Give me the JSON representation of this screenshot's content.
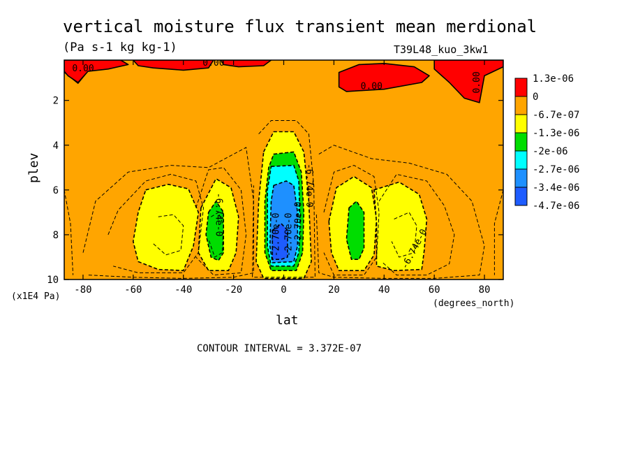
{
  "chart_data": {
    "type": "heatmap",
    "title": "vertical moisture flux transient mean merdional",
    "units": "(Pa s-1 kg kg-1)",
    "run_label": "T39L48_kuo_3kw1",
    "xlabel": "lat",
    "x_units": "(degrees_north)",
    "ylabel": "plev",
    "y_units": "(x1E4 Pa)",
    "xlim": [
      -87.5,
      87.5
    ],
    "ylim": [
      0.2,
      10
    ],
    "y_reversed": true,
    "x_ticks": [
      "-80",
      "-60",
      "-40",
      "-20",
      "0",
      "20",
      "40",
      "60",
      "80"
    ],
    "x_tick_values": [
      -80,
      -60,
      -40,
      -20,
      0,
      20,
      40,
      60,
      80
    ],
    "y_ticks": [
      "2",
      "4",
      "6",
      "8",
      "10"
    ],
    "y_tick_values": [
      2,
      4,
      6,
      8,
      10
    ],
    "footer": "CONTOUR INTERVAL = 3.372E-07",
    "legend": {
      "placement": "right",
      "colors": [
        "#ff0000",
        "#ffa500",
        "#ffff00",
        "#00dd00",
        "#00ffff",
        "#1e90ff",
        "#1e5cff"
      ],
      "labels": [
        "1.3e-06",
        "0",
        "-6.7e-07",
        "-1.3e-06",
        "-2e-06",
        "-2.7e-06",
        "-3.4e-06",
        "-4.7e-06"
      ]
    },
    "background_color": "#ffa500",
    "regions": [
      {
        "name": "upper-red-west",
        "color": "#ff0000",
        "points": [
          [
            -87.5,
            0.2
          ],
          [
            -65,
            0.2
          ],
          [
            -62,
            0.4
          ],
          [
            -70,
            0.6
          ],
          [
            -78,
            0.7
          ],
          [
            -82,
            1.2
          ],
          [
            -86,
            0.9
          ],
          [
            -87.5,
            0.7
          ]
        ]
      },
      {
        "name": "upper-red-center",
        "color": "#ff0000",
        "points": [
          [
            -60,
            0.2
          ],
          [
            -28,
            0.2
          ],
          [
            -30,
            0.55
          ],
          [
            -40,
            0.65
          ],
          [
            -52,
            0.55
          ],
          [
            -58,
            0.45
          ]
        ]
      },
      {
        "name": "upper-red-center2",
        "color": "#ff0000",
        "points": [
          [
            -25,
            0.2
          ],
          [
            -5,
            0.2
          ],
          [
            -8,
            0.45
          ],
          [
            -18,
            0.5
          ],
          [
            -24,
            0.4
          ]
        ]
      },
      {
        "name": "upper-red-east",
        "color": "#ff0000",
        "points": [
          [
            22,
            0.75
          ],
          [
            30,
            0.4
          ],
          [
            40,
            0.35
          ],
          [
            52,
            0.5
          ],
          [
            58,
            0.9
          ],
          [
            55,
            1.2
          ],
          [
            40,
            1.5
          ],
          [
            25,
            1.6
          ],
          [
            22,
            1.4
          ]
        ]
      },
      {
        "name": "upper-red-far-east",
        "color": "#ff0000",
        "points": [
          [
            60,
            0.2
          ],
          [
            87.5,
            0.2
          ],
          [
            87.5,
            0.5
          ],
          [
            80,
            0.9
          ],
          [
            78,
            2.1
          ],
          [
            72,
            1.9
          ],
          [
            66,
            1.2
          ],
          [
            60,
            0.6
          ]
        ]
      },
      {
        "name": "yellow-west",
        "color": "#ffff00",
        "points": [
          [
            -55,
            6.0
          ],
          [
            -46,
            5.75
          ],
          [
            -38,
            5.95
          ],
          [
            -34,
            7.0
          ],
          [
            -36,
            8.5
          ],
          [
            -40,
            9.6
          ],
          [
            -50,
            9.55
          ],
          [
            -58,
            9.2
          ],
          [
            -60,
            8.3
          ],
          [
            -58,
            7.0
          ]
        ]
      },
      {
        "name": "yellow-sw-blob",
        "color": "#ffff00",
        "points": [
          [
            -33,
            6.8
          ],
          [
            -27,
            5.5
          ],
          [
            -21,
            5.9
          ],
          [
            -18,
            7.2
          ],
          [
            -19,
            8.8
          ],
          [
            -22,
            9.6
          ],
          [
            -30,
            9.6
          ],
          [
            -34,
            8.8
          ]
        ]
      },
      {
        "name": "yellow-center",
        "color": "#ffff00",
        "points": [
          [
            -8,
            4.3
          ],
          [
            -4,
            3.4
          ],
          [
            4,
            3.4
          ],
          [
            8,
            4.3
          ],
          [
            10,
            6.5
          ],
          [
            11,
            9.2
          ],
          [
            8,
            9.95
          ],
          [
            -8,
            9.95
          ],
          [
            -11,
            9.2
          ],
          [
            -10,
            6.5
          ]
        ]
      },
      {
        "name": "yellow-east-blob",
        "color": "#ffff00",
        "points": [
          [
            18,
            7.4
          ],
          [
            21,
            5.9
          ],
          [
            28,
            5.4
          ],
          [
            35,
            5.9
          ],
          [
            37,
            7.3
          ],
          [
            36,
            8.9
          ],
          [
            32,
            9.6
          ],
          [
            22,
            9.6
          ],
          [
            19,
            8.8
          ]
        ]
      },
      {
        "name": "yellow-east",
        "color": "#ffff00",
        "points": [
          [
            36,
            6.0
          ],
          [
            46,
            5.65
          ],
          [
            54,
            6.2
          ],
          [
            57,
            7.3
          ],
          [
            56,
            8.7
          ],
          [
            55,
            9.55
          ],
          [
            44,
            9.6
          ],
          [
            37,
            9.4
          ],
          [
            37,
            7.5
          ]
        ]
      },
      {
        "name": "green-west",
        "color": "#00dd00",
        "points": [
          [
            -30,
            7.0
          ],
          [
            -27,
            6.5
          ],
          [
            -24,
            7.0
          ],
          [
            -24,
            8.8
          ],
          [
            -26,
            9.15
          ],
          [
            -29,
            9.0
          ],
          [
            -31,
            8.0
          ]
        ]
      },
      {
        "name": "green-east",
        "color": "#00dd00",
        "points": [
          [
            26,
            6.8
          ],
          [
            29,
            6.5
          ],
          [
            32,
            7.0
          ],
          [
            32,
            8.6
          ],
          [
            30,
            9.1
          ],
          [
            27,
            9.1
          ],
          [
            25,
            8.2
          ]
        ]
      },
      {
        "name": "green-center",
        "color": "#00dd00",
        "points": [
          [
            -4,
            4.4
          ],
          [
            4,
            4.3
          ],
          [
            7,
            5.2
          ],
          [
            8,
            7.0
          ],
          [
            7.5,
            8.8
          ],
          [
            5,
            9.6
          ],
          [
            -5,
            9.6
          ],
          [
            -7.5,
            8.8
          ],
          [
            -7.5,
            6.5
          ],
          [
            -6,
            5.0
          ]
        ]
      },
      {
        "name": "cyan-center",
        "color": "#00ffff",
        "points": [
          [
            -5,
            4.95
          ],
          [
            4,
            4.9
          ],
          [
            6,
            5.6
          ],
          [
            6.5,
            7.5
          ],
          [
            6,
            8.8
          ],
          [
            4,
            9.4
          ],
          [
            -5,
            9.4
          ],
          [
            -6.5,
            8.5
          ],
          [
            -6.5,
            6.0
          ]
        ]
      },
      {
        "name": "blue-center",
        "color": "#1e90ff",
        "points": [
          [
            -4,
            5.8
          ],
          [
            1,
            5.6
          ],
          [
            4,
            5.8
          ],
          [
            5.5,
            7.0
          ],
          [
            5.5,
            8.5
          ],
          [
            4,
            9.2
          ],
          [
            -4.5,
            9.25
          ],
          [
            -5.5,
            8.5
          ],
          [
            -5,
            6.5
          ]
        ]
      },
      {
        "name": "deepblue-center",
        "color": "#1e5cff",
        "points": [
          [
            -4.5,
            7.8
          ],
          [
            -1,
            7.5
          ],
          [
            1.5,
            7.8
          ],
          [
            1.5,
            9.0
          ],
          [
            -1,
            9.1
          ],
          [
            -4.5,
            9.1
          ]
        ]
      }
    ],
    "contours": [
      {
        "style": "dashed",
        "points": [
          [
            -80,
            8.8
          ],
          [
            -75,
            6.5
          ],
          [
            -62,
            5.2
          ],
          [
            -45,
            4.9
          ],
          [
            -30,
            5.0
          ],
          [
            -20,
            4.4
          ],
          [
            -15,
            4.1
          ],
          [
            -12,
            6.5
          ],
          [
            -12,
            9.7
          ],
          [
            -20,
            9.9
          ],
          [
            -40,
            9.95
          ],
          [
            -60,
            9.9
          ],
          [
            -78,
            9.8
          ]
        ]
      },
      {
        "style": "dashed",
        "points": [
          [
            -10,
            3.5
          ],
          [
            -5,
            2.9
          ],
          [
            5,
            2.9
          ],
          [
            10,
            3.5
          ],
          [
            12,
            5.8
          ],
          [
            12.5,
            9.9
          ],
          [
            -12.5,
            9.9
          ],
          [
            -12,
            5.8
          ]
        ]
      },
      {
        "style": "dashed",
        "points": [
          [
            14,
            4.4
          ],
          [
            20,
            4.0
          ],
          [
            35,
            4.6
          ],
          [
            50,
            4.8
          ],
          [
            65,
            5.3
          ],
          [
            75,
            6.5
          ],
          [
            80,
            8.5
          ],
          [
            78,
            9.8
          ],
          [
            60,
            9.95
          ],
          [
            40,
            9.95
          ],
          [
            20,
            9.9
          ],
          [
            14,
            9.7
          ],
          [
            13,
            7.0
          ]
        ]
      },
      {
        "style": "dashed",
        "points": [
          [
            -70,
            8.0
          ],
          [
            -66,
            6.9
          ],
          [
            -55,
            5.6
          ],
          [
            -45,
            5.3
          ],
          [
            -35,
            5.6
          ],
          [
            -32,
            6.8
          ],
          [
            -34,
            8.8
          ],
          [
            -40,
            9.7
          ],
          [
            -58,
            9.7
          ],
          [
            -68,
            9.4
          ]
        ]
      },
      {
        "style": "dashed",
        "points": [
          [
            -35,
            6.8
          ],
          [
            -30,
            5.1
          ],
          [
            -24,
            5.0
          ],
          [
            -17,
            6.0
          ],
          [
            -15,
            8.0
          ],
          [
            -17,
            9.7
          ],
          [
            -28,
            9.8
          ],
          [
            -35,
            9.0
          ]
        ]
      },
      {
        "style": "dashed",
        "points": [
          [
            16,
            7.0
          ],
          [
            20,
            5.2
          ],
          [
            28,
            4.9
          ],
          [
            36,
            5.4
          ],
          [
            38,
            7.0
          ],
          [
            37,
            9.0
          ],
          [
            32,
            9.8
          ],
          [
            20,
            9.8
          ],
          [
            16,
            8.8
          ]
        ]
      },
      {
        "style": "dashed",
        "points": [
          [
            38,
            6.5
          ],
          [
            45,
            5.3
          ],
          [
            57,
            5.6
          ],
          [
            64,
            6.7
          ],
          [
            68,
            8.0
          ],
          [
            66,
            9.3
          ],
          [
            57,
            9.8
          ],
          [
            45,
            9.8
          ],
          [
            39,
            9.2
          ]
        ]
      },
      {
        "style": "dashed",
        "points": [
          [
            -50,
            7.2
          ],
          [
            -44,
            7.1
          ],
          [
            -40,
            7.6
          ],
          [
            -41,
            8.7
          ],
          [
            -47,
            8.9
          ],
          [
            -52,
            8.4
          ]
        ]
      },
      {
        "style": "dashed",
        "points": [
          [
            -29,
            7.2
          ],
          [
            -26,
            7.0
          ],
          [
            -24,
            7.6
          ],
          [
            -24.5,
            8.8
          ],
          [
            -27.5,
            9.0
          ],
          [
            -30,
            8.2
          ]
        ]
      },
      {
        "style": "dashed",
        "points": [
          [
            44,
            7.3
          ],
          [
            50,
            7.0
          ],
          [
            53,
            7.6
          ],
          [
            52,
            8.8
          ],
          [
            46,
            9.0
          ],
          [
            43,
            8.3
          ]
        ]
      },
      {
        "style": "dashed",
        "points": [
          [
            -87.5,
            6.0
          ],
          [
            -85,
            7.5
          ],
          [
            -84,
            9.8
          ]
        ]
      },
      {
        "style": "dashed",
        "points": [
          [
            87.5,
            6.0
          ],
          [
            84,
            7.5
          ],
          [
            84,
            9.8
          ]
        ]
      },
      {
        "style": "solid",
        "points": [
          [
            -87.5,
            0.75
          ],
          [
            -82,
            1.25
          ],
          [
            -78,
            0.7
          ],
          [
            -70,
            0.6
          ],
          [
            -62,
            0.4
          ],
          [
            -65,
            0.2
          ]
        ]
      },
      {
        "style": "solid",
        "points": [
          [
            22,
            0.75
          ],
          [
            22,
            1.4
          ],
          [
            25,
            1.6
          ],
          [
            40,
            1.5
          ],
          [
            55,
            1.2
          ],
          [
            58,
            0.9
          ],
          [
            52,
            0.5
          ],
          [
            40,
            0.35
          ],
          [
            30,
            0.4
          ],
          [
            22,
            0.75
          ]
        ]
      },
      {
        "style": "solid",
        "points": [
          [
            60,
            0.2
          ],
          [
            60,
            0.6
          ],
          [
            66,
            1.2
          ],
          [
            72,
            1.9
          ],
          [
            78,
            2.1
          ],
          [
            80,
            0.9
          ],
          [
            87.5,
            0.5
          ]
        ]
      }
    ],
    "annotations": [
      {
        "text": "0.00",
        "x": -80,
        "y": 0.7,
        "rotate": 0
      },
      {
        "text": "0.00",
        "x": -28,
        "y": 0.45,
        "rotate": 0
      },
      {
        "text": "0.00",
        "x": 35,
        "y": 1.5,
        "rotate": 0
      },
      {
        "text": "0.00",
        "x": 78,
        "y": 1.2,
        "rotate": -90
      },
      {
        "text": "-6.74e-0",
        "x": -27,
        "y": 7.1,
        "rotate": 90
      },
      {
        "text": "-6.74e-0",
        "x": 53,
        "y": 8.7,
        "rotate": -62
      },
      {
        "text": "-6.74e-0",
        "x": 9,
        "y": 5.8,
        "rotate": 90
      },
      {
        "text": "-2.70e-0",
        "x": 7,
        "y": 7.5,
        "rotate": -90
      },
      {
        "text": "-2.70e-0",
        "x": 3,
        "y": 8.0,
        "rotate": -90
      },
      {
        "text": "-2.70e-0",
        "x": -2,
        "y": 8.0,
        "rotate": -90
      }
    ]
  }
}
